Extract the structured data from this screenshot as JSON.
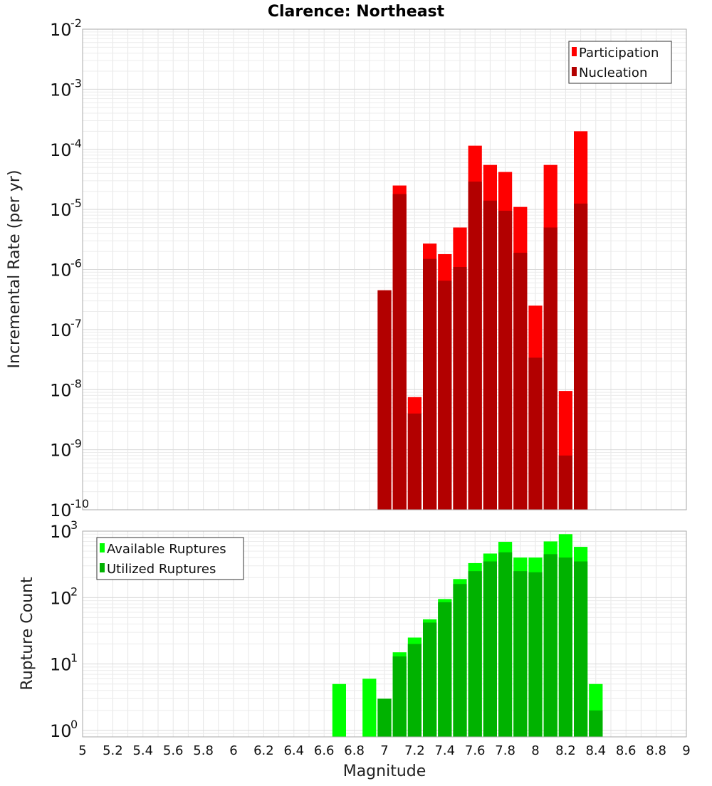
{
  "chart_data": [
    {
      "type": "bar",
      "title": "Clarence: Northeast",
      "ylabel": "Incremental Rate (per yr)",
      "xlabel": "",
      "yscale": "log",
      "ylim": [
        1e-10,
        0.01
      ],
      "xlim": [
        5,
        9
      ],
      "bar_width": 0.1,
      "grid": true,
      "legend_position": "top-right",
      "x": [
        7.0,
        7.1,
        7.2,
        7.3,
        7.4,
        7.5,
        7.6,
        7.7,
        7.8,
        7.9,
        8.0,
        8.1,
        8.2,
        8.3
      ],
      "series": [
        {
          "name": "Participation",
          "color": "#ff0000",
          "values": [
            4.5e-07,
            2.5e-05,
            7.5e-09,
            2.7e-06,
            1.8e-06,
            5e-06,
            0.000115,
            5.5e-05,
            4.2e-05,
            1.1e-05,
            2.5e-07,
            5.5e-05,
            9.5e-09,
            0.0002
          ]
        },
        {
          "name": "Nucleation",
          "color": "#b20000",
          "values": [
            4.5e-07,
            1.8e-05,
            4e-09,
            1.5e-06,
            6.5e-07,
            1.1e-06,
            2.9e-05,
            1.4e-05,
            9.5e-06,
            1.9e-06,
            3.4e-08,
            5e-06,
            8e-10,
            1.25e-05
          ]
        }
      ],
      "y_ticks": [
        {
          "base": "10",
          "exp": "-10",
          "value": 1e-10
        },
        {
          "base": "10",
          "exp": "-9",
          "value": 1e-09
        },
        {
          "base": "10",
          "exp": "-8",
          "value": 1e-08
        },
        {
          "base": "10",
          "exp": "-7",
          "value": 1e-07
        },
        {
          "base": "10",
          "exp": "-6",
          "value": 1e-06
        },
        {
          "base": "10",
          "exp": "-5",
          "value": 1e-05
        },
        {
          "base": "10",
          "exp": "-4",
          "value": 0.0001
        },
        {
          "base": "10",
          "exp": "-3",
          "value": 0.001
        },
        {
          "base": "10",
          "exp": "-2",
          "value": 0.01
        }
      ]
    },
    {
      "type": "bar",
      "title": "",
      "ylabel": "Rupture Count",
      "xlabel": "Magnitude",
      "yscale": "log",
      "ylim": [
        0.8,
        1000
      ],
      "xlim": [
        5,
        9
      ],
      "bar_width": 0.1,
      "grid": true,
      "legend_position": "top-left",
      "x": [
        6.7,
        6.8,
        6.9,
        7.0,
        7.1,
        7.2,
        7.3,
        7.4,
        7.5,
        7.6,
        7.7,
        7.8,
        7.9,
        8.0,
        8.1,
        8.2,
        8.3,
        8.4
      ],
      "series": [
        {
          "name": "Available Ruptures",
          "color": "#00ff00",
          "values": [
            5,
            0,
            6,
            3,
            15,
            25,
            47,
            95,
            190,
            330,
            460,
            690,
            400,
            400,
            700,
            900,
            580,
            5
          ]
        },
        {
          "name": "Utilized Ruptures",
          "color": "#00b200",
          "values": [
            0,
            0,
            0,
            3,
            13,
            20,
            42,
            85,
            160,
            250,
            350,
            480,
            250,
            240,
            450,
            400,
            350,
            2
          ]
        }
      ],
      "x_ticks": [
        "5",
        "5.2",
        "5.4",
        "5.6",
        "5.8",
        "6",
        "6.2",
        "6.4",
        "6.6",
        "6.8",
        "7",
        "7.2",
        "7.4",
        "7.6",
        "7.8",
        "8",
        "8.2",
        "8.4",
        "8.6",
        "8.8",
        "9"
      ],
      "y_ticks": [
        {
          "base": "10",
          "exp": "0",
          "value": 1
        },
        {
          "base": "10",
          "exp": "1",
          "value": 10
        },
        {
          "base": "10",
          "exp": "2",
          "value": 100
        },
        {
          "base": "10",
          "exp": "3",
          "value": 1000
        }
      ]
    }
  ]
}
